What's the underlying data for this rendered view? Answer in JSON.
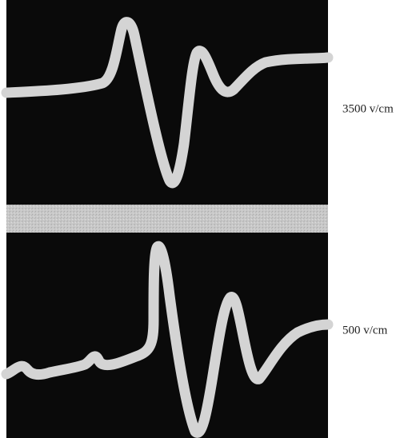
{
  "figure": {
    "panels": [
      {
        "label": "3500 v/cm"
      },
      {
        "label": "500 v/cm"
      }
    ]
  }
}
